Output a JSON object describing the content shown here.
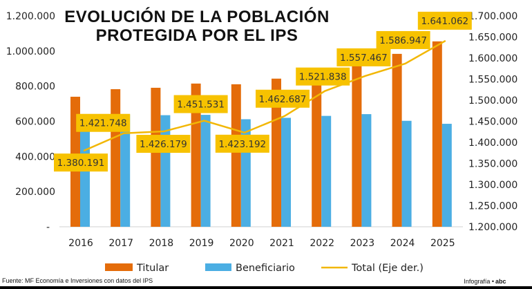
{
  "chart_data": {
    "type": "bar+line",
    "title": "EVOLUCIÓN DE LA POBLACIÓN PROTEGIDA POR EL IPS",
    "title_lines": [
      "EVOLUCIÓN DE LA POBLACIÓN",
      "PROTEGIDA POR EL IPS"
    ],
    "categories": [
      "2016",
      "2017",
      "2018",
      "2019",
      "2020",
      "2021",
      "2022",
      "2023",
      "2024",
      "2025"
    ],
    "series": [
      {
        "name": "Titular",
        "type": "bar",
        "axis": "left",
        "color": "#E46C0A",
        "values": [
          740000,
          783000,
          791000,
          815000,
          811000,
          843000,
          891000,
          916000,
          984000,
          1055000
        ]
      },
      {
        "name": "Beneficiario",
        "type": "bar",
        "axis": "left",
        "color": "#4BAEE3",
        "values": [
          640000,
          639000,
          635000,
          637000,
          612000,
          620000,
          631000,
          641000,
          603000,
          586000
        ]
      },
      {
        "name": "Total (Eje der.)",
        "type": "line",
        "axis": "right",
        "color": "#F2B705",
        "values": [
          1380191,
          1421748,
          1426179,
          1451531,
          1423192,
          1462687,
          1521838,
          1557467,
          1586947,
          1641062
        ],
        "data_labels": [
          "1.380.191",
          "1.421.748",
          "1.426.179",
          "1.451.531",
          "1.423.192",
          "1.462.687",
          "1.521.838",
          "1.557.467",
          "1.586.947",
          "1.641.062"
        ]
      }
    ],
    "left_axis": {
      "ylim": [
        0,
        1200000
      ],
      "ticks": [
        "-",
        "200.000",
        "400.000",
        "600.000",
        "800.000",
        "1.000.000",
        "1.200.000"
      ]
    },
    "right_axis": {
      "ylim": [
        1200000,
        1700000
      ],
      "ticks": [
        "1.200.000",
        "1.250.000",
        "1.300.000",
        "1.350.000",
        "1.400.000",
        "1.450.000",
        "1.500.000",
        "1.550.000",
        "1.600.000",
        "1.650.000",
        "1.700.000"
      ]
    },
    "grid": false,
    "legend_position": "bottom",
    "label_box_color": "#F7C200"
  },
  "footer": {
    "source": "Fuente: MF Economía e Inversiones con datos del IPS",
    "credit": "Infografía •",
    "logo": "abc"
  }
}
